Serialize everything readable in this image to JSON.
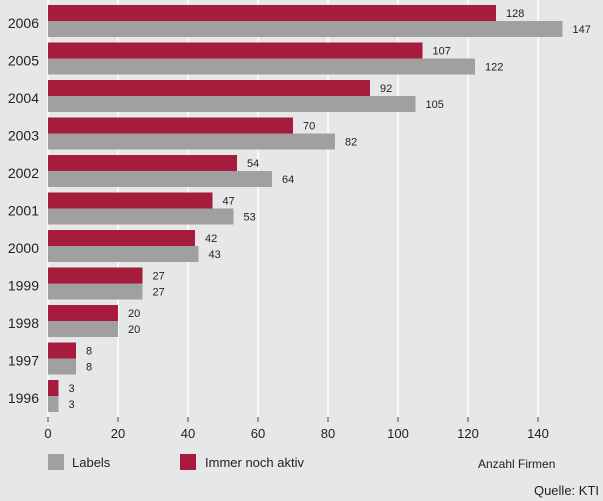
{
  "chart_data": {
    "type": "bar",
    "orientation": "horizontal",
    "categories": [
      "2006",
      "2005",
      "2004",
      "2003",
      "2002",
      "2001",
      "2000",
      "1999",
      "1998",
      "1997",
      "1996"
    ],
    "series": [
      {
        "name": "Immer noch aktiv",
        "color": "#a61c3c",
        "values": [
          128,
          107,
          92,
          70,
          54,
          47,
          42,
          27,
          20,
          8,
          3
        ]
      },
      {
        "name": "Labels",
        "color": "#a0a0a0",
        "values": [
          147,
          122,
          105,
          82,
          64,
          53,
          43,
          27,
          20,
          8,
          3
        ]
      }
    ],
    "xlim": [
      0,
      160
    ],
    "xticks": [
      0,
      20,
      40,
      60,
      80,
      100,
      120,
      140
    ],
    "xlabel": "Anzahl Firmen",
    "grid": true,
    "legend_order": [
      "Labels",
      "Immer noch aktiv"
    ],
    "source": "Quelle: KTI"
  },
  "colors": {
    "background": "#e6e7e8",
    "grid": "#ffffff"
  }
}
